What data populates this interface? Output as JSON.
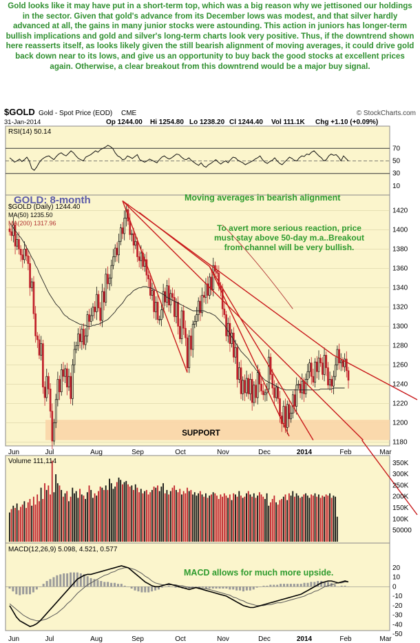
{
  "commentary": "Gold looks like it may have put in a short-term top, which was a big reason why we jettisoned our holdings in the sector. Given that gold's advance from its December lows was modest, and that silver hardly advanced at all, the gains in many junior stocks were astounding. This action in juniors has longer-term bullish implications and gold and silver's long-term charts look very positive. Thus, if the downtrend shown here reasserts itself, as looks likely given the still bearish alignment of moving averages, it could drive gold back down near to its lows, and give us an opportunity to buy back the good stocks at excellent prices again. Otherwise, a clear breakout from this downtrend would be a major buy signal.",
  "header": {
    "symbol": "$GOLD",
    "name": "Gold - Spot Price (EOD)",
    "exchange": "CME",
    "source": "© StockCharts.com",
    "date": "31-Jan-2014",
    "op": "Op 1244.00",
    "hi": "Hi 1254.80",
    "lo": "Lo 1238.20",
    "cl": "Cl 1244.40",
    "vol": "Vol 111.1K",
    "chg": "Chg +1.10 (+0.09%)"
  },
  "annotations": {
    "title": "GOLD: 8-month",
    "ma_note": "Moving averages in bearish alignment",
    "avert_note": [
      "To avert more serious reaction, price",
      "must stay above 50-day m.a..Breakout",
      "from channel will be very bullish."
    ],
    "support": "SUPPORT",
    "macd_note": "MACD allows for much more upside."
  },
  "colors": {
    "background": "#fbf5cc",
    "candle_up": "#111111",
    "candle_down": "#c0202a",
    "channel": "#c8181a",
    "ma50": "#222222",
    "ma200": "#b03030",
    "support_band": "#f9d6a8",
    "annotation": "#2e9b2e",
    "volume_up": "#111111",
    "volume_down": "#c0202a"
  },
  "chart_data": [
    {
      "type": "line",
      "panel": "rsi",
      "label": "RSI(14) 50.14",
      "ylim": [
        0,
        100
      ],
      "ticks": [
        "70",
        "50",
        "30",
        "10"
      ],
      "levels": [
        70,
        30
      ],
      "values": [
        55,
        52,
        48,
        50,
        53,
        49,
        52,
        56,
        50,
        38,
        35,
        40,
        47,
        52,
        55,
        57,
        58,
        55,
        52,
        57,
        61,
        63,
        60,
        58,
        62,
        66,
        63,
        58,
        54,
        52,
        50,
        56,
        58,
        60,
        63,
        66,
        64,
        68,
        70,
        72,
        75,
        73,
        70,
        63,
        58,
        56,
        52,
        53,
        58,
        56,
        54,
        57,
        60,
        52,
        50,
        48,
        50,
        53,
        51,
        49,
        47,
        52,
        56,
        58,
        55,
        53,
        55,
        58,
        61,
        60,
        56,
        53,
        52,
        55,
        51,
        48,
        45,
        43,
        47,
        42,
        40,
        44,
        46,
        49,
        52,
        48,
        45,
        48,
        50,
        47,
        52,
        56,
        55,
        51,
        49,
        47,
        44,
        46,
        48,
        50,
        53,
        55,
        58,
        52,
        48,
        46,
        49,
        51,
        55,
        50,
        46,
        44,
        48,
        52,
        56,
        54,
        51,
        50,
        55,
        58,
        57,
        61,
        60,
        64,
        66,
        62,
        58,
        55,
        50,
        52,
        58,
        61,
        59,
        60,
        56,
        50,
        58,
        54,
        50
      ]
    },
    {
      "type": "candlestick",
      "panel": "price",
      "label": "$GOLD (Daily) 1244.40",
      "ma50_label": "MA(50) 1235.50",
      "ma200_label": "MA(200) 1317.96",
      "y_ticks": [
        "1420",
        "1400",
        "1380",
        "1360",
        "1340",
        "1320",
        "1300",
        "1280",
        "1260",
        "1240",
        "1220",
        "1200",
        "1180"
      ],
      "ylim": [
        1176,
        1436
      ],
      "x_labels": [
        "Jun",
        "Jul",
        "Aug",
        "Sep",
        "Oct",
        "Nov",
        "Dec",
        "2014",
        "Feb",
        "Mar"
      ],
      "close": [
        1398,
        1394,
        1405,
        1383,
        1390,
        1380,
        1374,
        1369,
        1380,
        1373,
        1365,
        1340,
        1346,
        1313,
        1290,
        1286,
        1270,
        1282,
        1237,
        1226,
        1248,
        1235,
        1212,
        1181,
        1200,
        1224,
        1245,
        1232,
        1255,
        1248,
        1256,
        1237,
        1248,
        1225,
        1260,
        1276,
        1280,
        1292,
        1284,
        1297,
        1281,
        1290,
        1312,
        1305,
        1311,
        1320,
        1315,
        1333,
        1319,
        1306,
        1336,
        1325,
        1354,
        1344,
        1350,
        1363,
        1372,
        1381,
        1374,
        1388,
        1402,
        1396,
        1412,
        1421,
        1409,
        1395,
        1396,
        1384,
        1388,
        1372,
        1368,
        1376,
        1362,
        1369,
        1353,
        1349,
        1332,
        1337,
        1315,
        1325,
        1307,
        1307,
        1317,
        1336,
        1325,
        1342,
        1322,
        1334,
        1330,
        1310,
        1325,
        1300,
        1287,
        1316,
        1298,
        1288,
        1257,
        1290,
        1276,
        1302,
        1305,
        1312,
        1326,
        1314,
        1332,
        1330,
        1344,
        1332,
        1351,
        1338,
        1363,
        1357,
        1355,
        1342,
        1338,
        1318,
        1312,
        1290,
        1303,
        1282,
        1293,
        1268,
        1278,
        1245,
        1257,
        1230,
        1244,
        1231,
        1246,
        1230,
        1245,
        1221,
        1239,
        1226,
        1252,
        1240,
        1233,
        1229,
        1231,
        1235,
        1268,
        1250,
        1236,
        1226,
        1237,
        1225,
        1207,
        1199,
        1217,
        1195,
        1219,
        1204,
        1210,
        1229,
        1217,
        1239,
        1240,
        1231,
        1243,
        1230,
        1245,
        1253,
        1262,
        1248,
        1242,
        1263,
        1253,
        1267,
        1262,
        1250,
        1270,
        1257,
        1239,
        1245,
        1238,
        1248,
        1260,
        1276,
        1262,
        1264,
        1258,
        1266,
        1254,
        1244
      ],
      "ma50": [
        1407,
        1405,
        1402,
        1399,
        1397,
        1394,
        1392,
        1389,
        1386,
        1382,
        1379,
        1375,
        1371,
        1368,
        1363,
        1360,
        1355,
        1351,
        1347,
        1343,
        1339,
        1335,
        1332,
        1329,
        1326,
        1323,
        1321,
        1319,
        1316,
        1313,
        1311,
        1310,
        1308,
        1307,
        1306,
        1305,
        1304,
        1303,
        1302,
        1302,
        1301,
        1301,
        1300,
        1300,
        1300,
        1301,
        1301,
        1302,
        1302,
        1303,
        1304,
        1305,
        1306,
        1307,
        1309,
        1311,
        1313,
        1315,
        1318,
        1320,
        1322,
        1324,
        1327,
        1330,
        1332,
        1333,
        1335,
        1337,
        1338,
        1339,
        1340,
        1340,
        1341,
        1341,
        1341,
        1340,
        1340,
        1339,
        1338,
        1337,
        1336,
        1335,
        1334,
        1333,
        1332,
        1330,
        1329,
        1328,
        1327,
        1326,
        1325,
        1324,
        1323,
        1322,
        1321,
        1320,
        1319,
        1318,
        1317,
        1316,
        1316,
        1316,
        1316,
        1316,
        1316,
        1316,
        1315,
        1314,
        1314,
        1313,
        1312,
        1311,
        1309,
        1307,
        1305,
        1303,
        1301,
        1298,
        1295,
        1292,
        1289,
        1286,
        1283,
        1280,
        1277,
        1274,
        1272,
        1270,
        1268,
        1266,
        1263,
        1260,
        1258,
        1255,
        1253,
        1250,
        1248,
        1246,
        1244,
        1243,
        1242,
        1241,
        1240,
        1239,
        1238,
        1237,
        1236,
        1235,
        1235,
        1234,
        1234,
        1234,
        1234,
        1234,
        1234,
        1234,
        1234,
        1234,
        1234,
        1234,
        1234,
        1234,
        1234,
        1234,
        1234,
        1234,
        1234,
        1234,
        1235,
        1235,
        1235,
        1235,
        1235,
        1235,
        1235,
        1236,
        1236,
        1236,
        1236,
        1236,
        1236,
        1236
      ],
      "ma200_x": [
        115,
        153
      ],
      "ma200": [
        1405,
        1318
      ]
    },
    {
      "type": "bar",
      "panel": "volume",
      "label": "Volume 111,114",
      "ylim": [
        0,
        380000
      ],
      "y_ticks": [
        "350K",
        "300K",
        "250K",
        "200K",
        "150K",
        "100K",
        "50000"
      ],
      "values": [
        130000,
        145000,
        160000,
        150000,
        170000,
        140000,
        155000,
        165000,
        180000,
        150000,
        175000,
        190000,
        160000,
        200000,
        165000,
        210000,
        180000,
        240000,
        190000,
        260000,
        230000,
        250000,
        210000,
        360000,
        220000,
        300000,
        260000,
        250000,
        230000,
        200000,
        215000,
        225000,
        180000,
        200000,
        240000,
        215000,
        225000,
        195000,
        235000,
        210000,
        205000,
        190000,
        220000,
        250000,
        230000,
        195000,
        215000,
        205000,
        225000,
        245000,
        240000,
        230000,
        250000,
        230000,
        280000,
        260000,
        235000,
        245000,
        265000,
        285000,
        275000,
        255000,
        265000,
        270000,
        255000,
        245000,
        250000,
        230000,
        255000,
        240000,
        220000,
        235000,
        215000,
        225000,
        230000,
        210000,
        220000,
        230000,
        245000,
        240000,
        250000,
        225000,
        245000,
        260000,
        215000,
        230000,
        210000,
        225000,
        240000,
        250000,
        230000,
        220000,
        235000,
        210000,
        225000,
        215000,
        240000,
        225000,
        230000,
        210000,
        220000,
        205000,
        215000,
        225000,
        210000,
        200000,
        215000,
        195000,
        205000,
        210000,
        220000,
        215000,
        205000,
        190000,
        210000,
        200000,
        215000,
        205000,
        195000,
        210000,
        185000,
        215000,
        210000,
        200000,
        225000,
        205000,
        195000,
        200000,
        215000,
        225000,
        210000,
        200000,
        215000,
        195000,
        205000,
        220000,
        210000,
        200000,
        190000,
        215000,
        160000,
        175000,
        190000,
        205000,
        175000,
        165000,
        185000,
        190000,
        200000,
        210000,
        185000,
        215000,
        205000,
        225000,
        200000,
        215000,
        205000,
        195000,
        200000,
        210000,
        215000,
        205000,
        195000,
        210000,
        205000,
        215000,
        200000,
        210000,
        195000,
        205000,
        200000,
        210000,
        205000,
        215000,
        195000,
        205000,
        200000,
        111114
      ]
    },
    {
      "type": "line",
      "panel": "macd",
      "label": "MACD(12,26,9) 5.098, 4.521, 0.577",
      "ylim": [
        -50,
        30
      ],
      "y_ticks": [
        "20",
        "10",
        "0",
        "-10",
        "-20",
        "-30",
        "-40",
        "-50"
      ],
      "macd": [
        -20,
        -26,
        -32,
        -36,
        -38,
        -40,
        -42,
        -41,
        -39,
        -36,
        -32,
        -28,
        -24,
        -20,
        -16,
        -12,
        -8,
        -4,
        0,
        4,
        8,
        10,
        12,
        13,
        13,
        14,
        15,
        16,
        17,
        18,
        19,
        20,
        21,
        22,
        21,
        20,
        17,
        14,
        11,
        8,
        5,
        3,
        1,
        0,
        0,
        1,
        2,
        3,
        2,
        1,
        0,
        -1,
        -2,
        -3,
        -2,
        -1,
        -2,
        -3,
        -4,
        -5,
        -6,
        -7,
        -8,
        -9,
        -10,
        -12,
        -14,
        -16,
        -18,
        -20,
        -21,
        -22,
        -22,
        -21,
        -20,
        -19,
        -18,
        -17,
        -16,
        -15,
        -14,
        -13,
        -12,
        -11,
        -10,
        -9,
        -8,
        -6,
        -4,
        -2,
        0,
        2,
        4,
        5,
        6,
        6,
        5,
        4,
        5,
        6,
        5
      ],
      "signal": [
        -18,
        -21,
        -24,
        -27,
        -30,
        -32,
        -34,
        -35,
        -36,
        -36,
        -35,
        -34,
        -32,
        -30,
        -28,
        -25,
        -22,
        -18,
        -15,
        -11,
        -7,
        -4,
        -1,
        2,
        4,
        6,
        8,
        10,
        12,
        13,
        15,
        16,
        18,
        19,
        20,
        20,
        19,
        18,
        16,
        14,
        11,
        9,
        6,
        4,
        3,
        2,
        2,
        2,
        2,
        2,
        1,
        1,
        0,
        -1,
        -1,
        -1,
        -1,
        -2,
        -2,
        -3,
        -4,
        -5,
        -6,
        -7,
        -8,
        -9,
        -11,
        -12,
        -14,
        -15,
        -17,
        -18,
        -19,
        -20,
        -20,
        -20,
        -19,
        -19,
        -18,
        -17,
        -17,
        -16,
        -15,
        -14,
        -13,
        -12,
        -11,
        -10,
        -8,
        -7,
        -5,
        -4,
        -2,
        0,
        1,
        2,
        3,
        4,
        4,
        5,
        5
      ]
    }
  ]
}
